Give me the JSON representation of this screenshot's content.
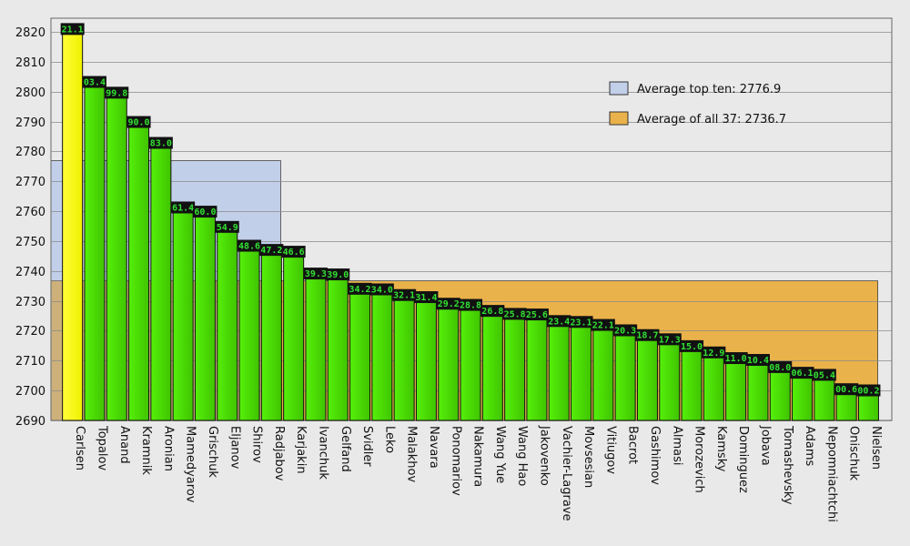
{
  "chart_data": {
    "type": "bar",
    "title": "",
    "xlabel": "",
    "ylabel": "",
    "ylim": [
      2690,
      2825
    ],
    "yticks": [
      2690,
      2700,
      2710,
      2720,
      2730,
      2740,
      2750,
      2760,
      2770,
      2780,
      2790,
      2800,
      2810,
      2820
    ],
    "grid": true,
    "legend_position": "top-right",
    "categories": [
      "Carlsen",
      "Topalov",
      "Anand",
      "Kramnik",
      "Aronian",
      "Mamedyarov",
      "Grischuk",
      "Eljanov",
      "Shirov",
      "Radjabov",
      "Karjakin",
      "Ivanchuk",
      "Gelfand",
      "Svidler",
      "Leko",
      "Malakhov",
      "Navara",
      "Ponomariov",
      "Nakamura",
      "Wang Yue",
      "Wang Hao",
      "Jakovenko",
      "Vachier-Lagrave",
      "Movsesian",
      "Vitiugov",
      "Bacrot",
      "Gashimov",
      "Almasi",
      "Morozevich",
      "Kamsky",
      "Dominguez",
      "Jobava",
      "Tomashevsky",
      "Adams",
      "Nepomniachtchi",
      "Onischuk",
      "Nielsen"
    ],
    "values": [
      2821.1,
      2803.4,
      2799.8,
      2790.0,
      2783.0,
      2761.4,
      2760.0,
      2754.9,
      2748.6,
      2747.2,
      2746.6,
      2739.3,
      2739.0,
      2734.2,
      2734.0,
      2732.1,
      2731.4,
      2729.2,
      2728.8,
      2726.8,
      2725.8,
      2725.6,
      2723.4,
      2723.1,
      2722.1,
      2720.3,
      2718.7,
      2717.3,
      2715.0,
      2712.9,
      2711.0,
      2710.4,
      2708.0,
      2706.1,
      2705.4,
      2700.6,
      2700.2
    ],
    "data_labels": [
      "21.1",
      "03.4",
      "99.8",
      "90.0",
      "83.0",
      "61.4",
      "60.0",
      "54.9",
      "48.6",
      "47.2",
      "46.6",
      "39.3",
      "39.0",
      "34.2",
      "34.0",
      "32.1",
      "31.4",
      "29.2",
      "28.8",
      "26.8",
      "25.8",
      "25.6",
      "23.4",
      "23.1",
      "22.1",
      "20.3",
      "18.7",
      "17.3",
      "15.0",
      "12.9",
      "11.0",
      "10.4",
      "08.0",
      "06.1",
      "05.4",
      "00.6",
      "00.2"
    ],
    "highlight_index": 0,
    "averages": [
      {
        "label": "Average top ten: 2776.9",
        "value": 2776.9,
        "span": 10,
        "color": "#c2cfe9"
      },
      {
        "label": "Average of all 37: 2736.7",
        "value": 2736.7,
        "span": 37,
        "color": "#eab24a"
      }
    ],
    "colors": {
      "background": "#e9e9e9",
      "grid": "#8a8a8a",
      "bar_green_light": "#4fea08",
      "bar_green_dark": "#4cb800",
      "bar_highlight": "#ffff00",
      "label_bg": "#111111",
      "label_text": "#33e033"
    }
  }
}
